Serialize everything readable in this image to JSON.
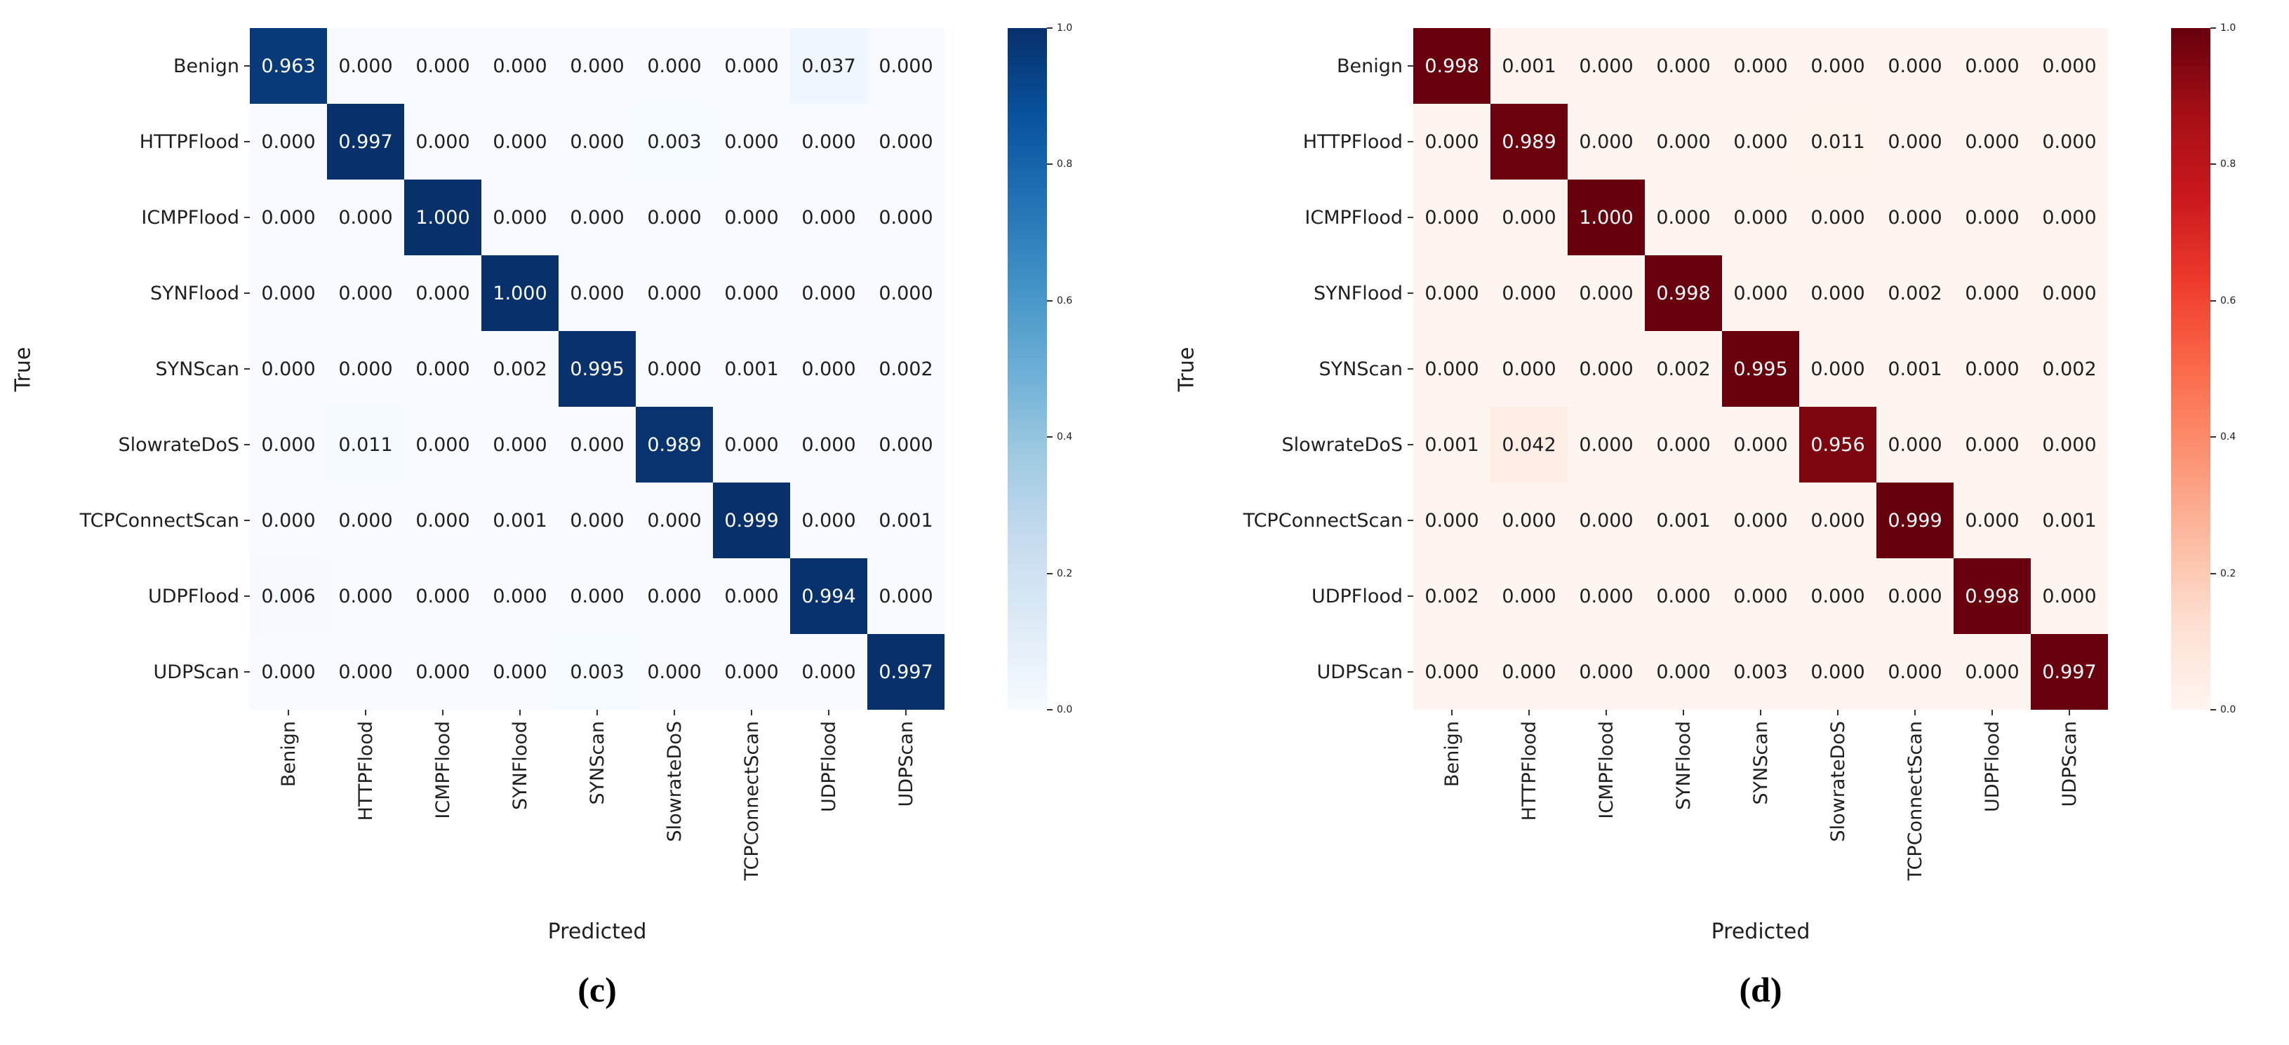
{
  "figure": {
    "background": "#ffffff"
  },
  "chart_data": [
    {
      "type": "heatmap",
      "caption": "(c)",
      "xlabel": "Predicted",
      "ylabel": "True",
      "colormap": "Blues",
      "colormap_stops": [
        "#f7fbff",
        "#deebf7",
        "#c6dbef",
        "#9ecae1",
        "#6baed6",
        "#4292c6",
        "#2171b5",
        "#08519c",
        "#08306b"
      ],
      "text_color_dark": "#1f1f1f",
      "text_color_light": "#ffffff",
      "vmin": 0.0,
      "vmax": 1.0,
      "colorbar_ticks": [
        "1.0",
        "0.8",
        "0.6",
        "0.4",
        "0.2",
        "0.0"
      ],
      "categories": [
        "Benign",
        "HTTPFlood",
        "ICMPFlood",
        "SYNFlood",
        "SYNScan",
        "SlowrateDoS",
        "TCPConnectScan",
        "UDPFlood",
        "UDPScan"
      ],
      "matrix": [
        [
          "0.963",
          "0.000",
          "0.000",
          "0.000",
          "0.000",
          "0.000",
          "0.000",
          "0.037",
          "0.000"
        ],
        [
          "0.000",
          "0.997",
          "0.000",
          "0.000",
          "0.000",
          "0.003",
          "0.000",
          "0.000",
          "0.000"
        ],
        [
          "0.000",
          "0.000",
          "1.000",
          "0.000",
          "0.000",
          "0.000",
          "0.000",
          "0.000",
          "0.000"
        ],
        [
          "0.000",
          "0.000",
          "0.000",
          "1.000",
          "0.000",
          "0.000",
          "0.000",
          "0.000",
          "0.000"
        ],
        [
          "0.000",
          "0.000",
          "0.000",
          "0.002",
          "0.995",
          "0.000",
          "0.001",
          "0.000",
          "0.002"
        ],
        [
          "0.000",
          "0.011",
          "0.000",
          "0.000",
          "0.000",
          "0.989",
          "0.000",
          "0.000",
          "0.000"
        ],
        [
          "0.000",
          "0.000",
          "0.000",
          "0.001",
          "0.000",
          "0.000",
          "0.999",
          "0.000",
          "0.001"
        ],
        [
          "0.006",
          "0.000",
          "0.000",
          "0.000",
          "0.000",
          "0.000",
          "0.000",
          "0.994",
          "0.000"
        ],
        [
          "0.000",
          "0.000",
          "0.000",
          "0.000",
          "0.003",
          "0.000",
          "0.000",
          "0.000",
          "0.997"
        ]
      ]
    },
    {
      "type": "heatmap",
      "caption": "(d)",
      "xlabel": "Predicted",
      "ylabel": "True",
      "colormap": "Reds",
      "colormap_stops": [
        "#fff5f0",
        "#fee0d2",
        "#fcbba1",
        "#fc9272",
        "#fb6a4a",
        "#ef3b2c",
        "#cb181d",
        "#a50f15",
        "#67000d"
      ],
      "text_color_dark": "#1f1f1f",
      "text_color_light": "#ffffff",
      "vmin": 0.0,
      "vmax": 1.0,
      "colorbar_ticks": [
        "1.0",
        "0.8",
        "0.6",
        "0.4",
        "0.2",
        "0.0"
      ],
      "categories": [
        "Benign",
        "HTTPFlood",
        "ICMPFlood",
        "SYNFlood",
        "SYNScan",
        "SlowrateDoS",
        "TCPConnectScan",
        "UDPFlood",
        "UDPScan"
      ],
      "matrix": [
        [
          "0.998",
          "0.001",
          "0.000",
          "0.000",
          "0.000",
          "0.000",
          "0.000",
          "0.000",
          "0.000"
        ],
        [
          "0.000",
          "0.989",
          "0.000",
          "0.000",
          "0.000",
          "0.011",
          "0.000",
          "0.000",
          "0.000"
        ],
        [
          "0.000",
          "0.000",
          "1.000",
          "0.000",
          "0.000",
          "0.000",
          "0.000",
          "0.000",
          "0.000"
        ],
        [
          "0.000",
          "0.000",
          "0.000",
          "0.998",
          "0.000",
          "0.000",
          "0.002",
          "0.000",
          "0.000"
        ],
        [
          "0.000",
          "0.000",
          "0.000",
          "0.002",
          "0.995",
          "0.000",
          "0.001",
          "0.000",
          "0.002"
        ],
        [
          "0.001",
          "0.042",
          "0.000",
          "0.000",
          "0.000",
          "0.956",
          "0.000",
          "0.000",
          "0.000"
        ],
        [
          "0.000",
          "0.000",
          "0.000",
          "0.001",
          "0.000",
          "0.000",
          "0.999",
          "0.000",
          "0.001"
        ],
        [
          "0.002",
          "0.000",
          "0.000",
          "0.000",
          "0.000",
          "0.000",
          "0.000",
          "0.998",
          "0.000"
        ],
        [
          "0.000",
          "0.000",
          "0.000",
          "0.000",
          "0.003",
          "0.000",
          "0.000",
          "0.000",
          "0.997"
        ]
      ]
    }
  ]
}
